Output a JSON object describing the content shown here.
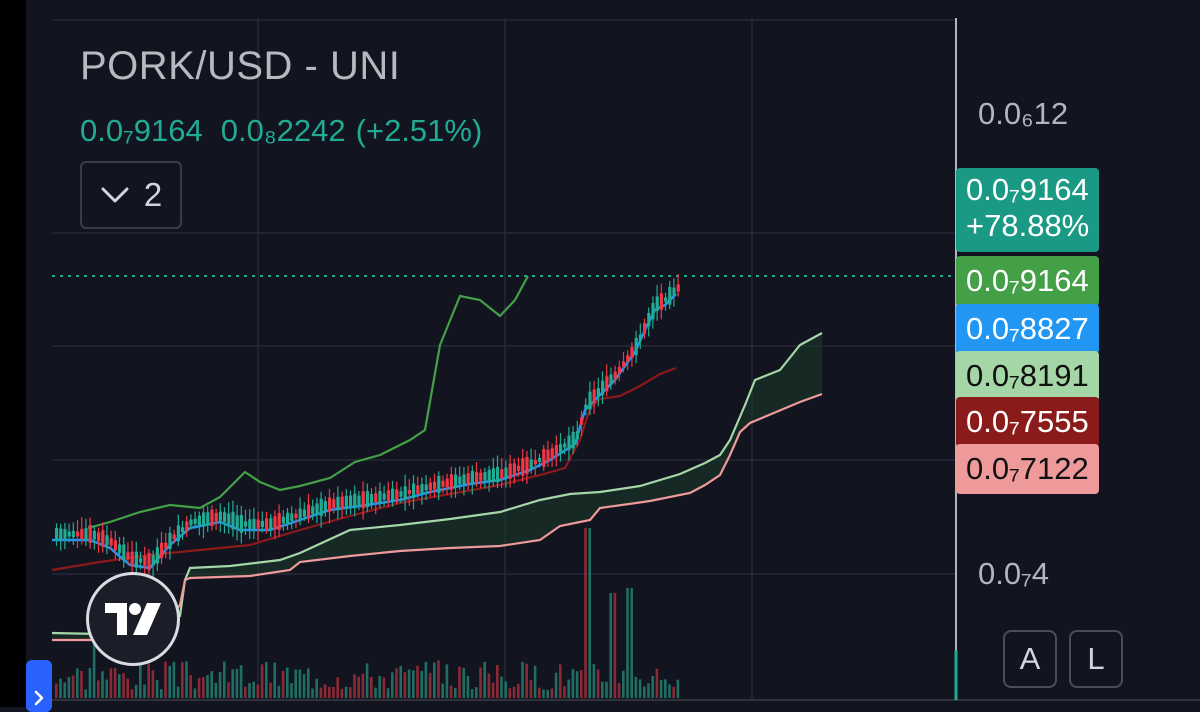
{
  "header": {
    "symbol_title": "PORK/USD - UNI",
    "last_price": "0.0₇9164",
    "change_abs": "0.0₈2242",
    "change_pct": "(+2.51%)",
    "indicator_toggle_count": "2"
  },
  "price_axis": {
    "ticks": [
      {
        "label": "0.0₆12"
      },
      {
        "label": "0.0₇4"
      }
    ]
  },
  "price_tags": [
    {
      "value": "0.0₇9164",
      "sub": "+78.88%",
      "bg": "#1a9a85",
      "fg": "#ffffff"
    },
    {
      "value": "0.0₇9164",
      "bg": "#43a047",
      "fg": "#ffffff"
    },
    {
      "value": "0.0₇8827",
      "bg": "#2196f3",
      "fg": "#ffffff"
    },
    {
      "value": "0.0₇8191",
      "bg": "#a5d6a7",
      "fg": "#111111"
    },
    {
      "value": "0.0₇7555",
      "bg": "#8b1a1a",
      "fg": "#ffffff"
    },
    {
      "value": "0.0₇7122",
      "bg": "#ef9a9a",
      "fg": "#111111"
    }
  ],
  "scale_buttons": {
    "auto_label": "A",
    "log_label": "L"
  },
  "colors": {
    "background": "#121420",
    "up": "#22ab94",
    "down": "#f23645",
    "green_line": "#43a047",
    "blue_line": "#2196f3",
    "darkred_line": "#8b1a1a",
    "lightgreen_line": "#a5d6a7",
    "pink_line": "#ef9a9a"
  },
  "icons": {
    "toggle": "chevron-down-icon",
    "logo": "tradingview-logo",
    "handle": "chevron-right-icon"
  }
}
